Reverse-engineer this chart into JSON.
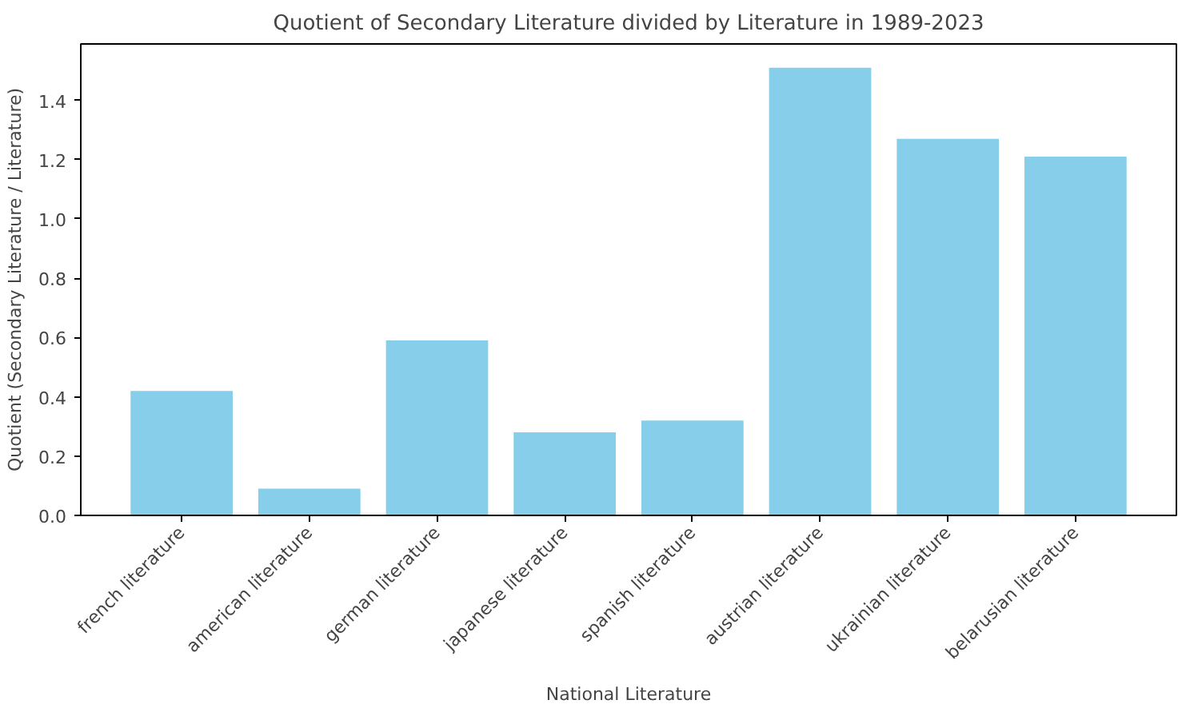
{
  "chart_data": {
    "type": "bar",
    "title": "Quotient of Secondary Literature divided by Literature in 1989-2023",
    "xlabel": "National Literature",
    "ylabel": "Quotient (Secondary Literature / Literature)",
    "categories": [
      "french literature",
      "american literature",
      "german literature",
      "japanese literature",
      "spanish literature",
      "austrian literature",
      "ukrainian literature",
      "belarusian literature"
    ],
    "values": [
      0.42,
      0.09,
      0.59,
      0.28,
      0.32,
      1.51,
      1.27,
      1.21
    ],
    "color": "#87ceeb",
    "ylim": [
      0,
      1.59
    ],
    "yticks": [
      {
        "value": 0,
        "label": "0.0"
      },
      0.2,
      0.4,
      0.6,
      0.8,
      {
        "value": 1,
        "label": "1.0"
      },
      1.2,
      1.4
    ],
    "grid": false
  }
}
